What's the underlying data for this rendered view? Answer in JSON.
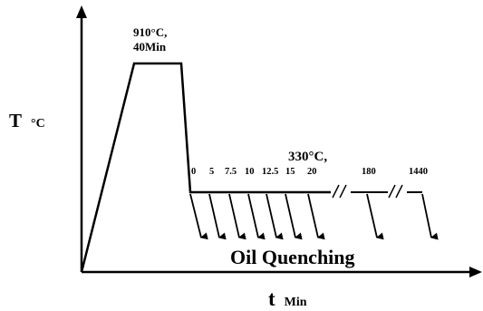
{
  "axes": {
    "y_label": "T",
    "y_unit": "°C",
    "x_label": "t",
    "x_unit": "Min"
  },
  "austenitize": {
    "temperature": "910°C,",
    "time": "40Min"
  },
  "isothermal": {
    "temperature": "330°C,",
    "hold_times": [
      "0",
      "5",
      "7.5",
      "10",
      "12.5",
      "15",
      "20",
      "180",
      "1440"
    ]
  },
  "quench_label": "Oil Quenching",
  "colors": {
    "ink": "#000000",
    "background": "#ffffff"
  }
}
